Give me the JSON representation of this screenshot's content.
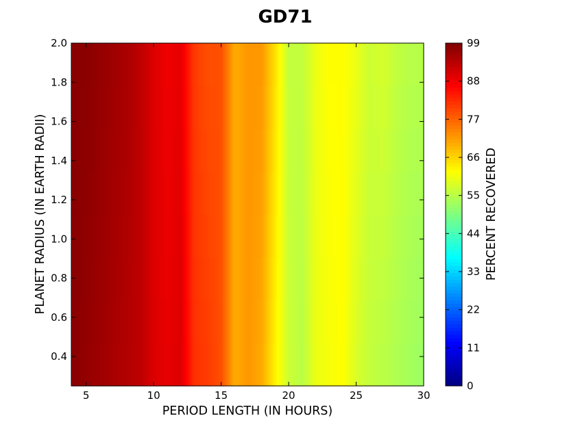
{
  "chart_data": {
    "type": "heatmap",
    "title": "GD71",
    "xlabel": "PERIOD LENGTH (IN HOURS)",
    "ylabel": "PLANET RADIUS (IN EARTH RADII)",
    "colorbar_label": "PERCENT RECOVERED",
    "xlim": [
      3.9,
      30
    ],
    "ylim": [
      0.25,
      2.0
    ],
    "x_ticks": [
      5,
      10,
      15,
      20,
      25,
      30
    ],
    "y_ticks": [
      0.4,
      0.6,
      0.8,
      1.0,
      1.2,
      1.4,
      1.6,
      1.8,
      2.0
    ],
    "colorbar_range": [
      0,
      99
    ],
    "colorbar_ticks": [
      0,
      11,
      22,
      33,
      44,
      55,
      66,
      77,
      88,
      99
    ],
    "colormap": "jet",
    "x": [
      4,
      5,
      6,
      7,
      8,
      9,
      10,
      11,
      12,
      13,
      14,
      15,
      16,
      17,
      18,
      19,
      20,
      21,
      22,
      23,
      24,
      25,
      26,
      27,
      28,
      29,
      30
    ],
    "y": [
      0.25,
      2.0
    ],
    "z": [
      [
        98,
        97,
        96,
        95,
        94,
        93,
        90,
        89,
        90,
        82,
        81,
        79,
        70,
        72,
        70,
        63,
        57,
        55,
        60,
        61,
        62,
        58,
        56,
        55,
        54,
        53,
        52
      ],
      [
        98,
        98,
        97,
        96,
        95,
        93,
        90,
        88,
        89,
        81,
        79,
        79,
        70,
        72,
        72,
        65,
        56,
        56,
        60,
        62,
        62,
        60,
        57,
        58,
        56,
        55,
        55
      ]
    ]
  }
}
